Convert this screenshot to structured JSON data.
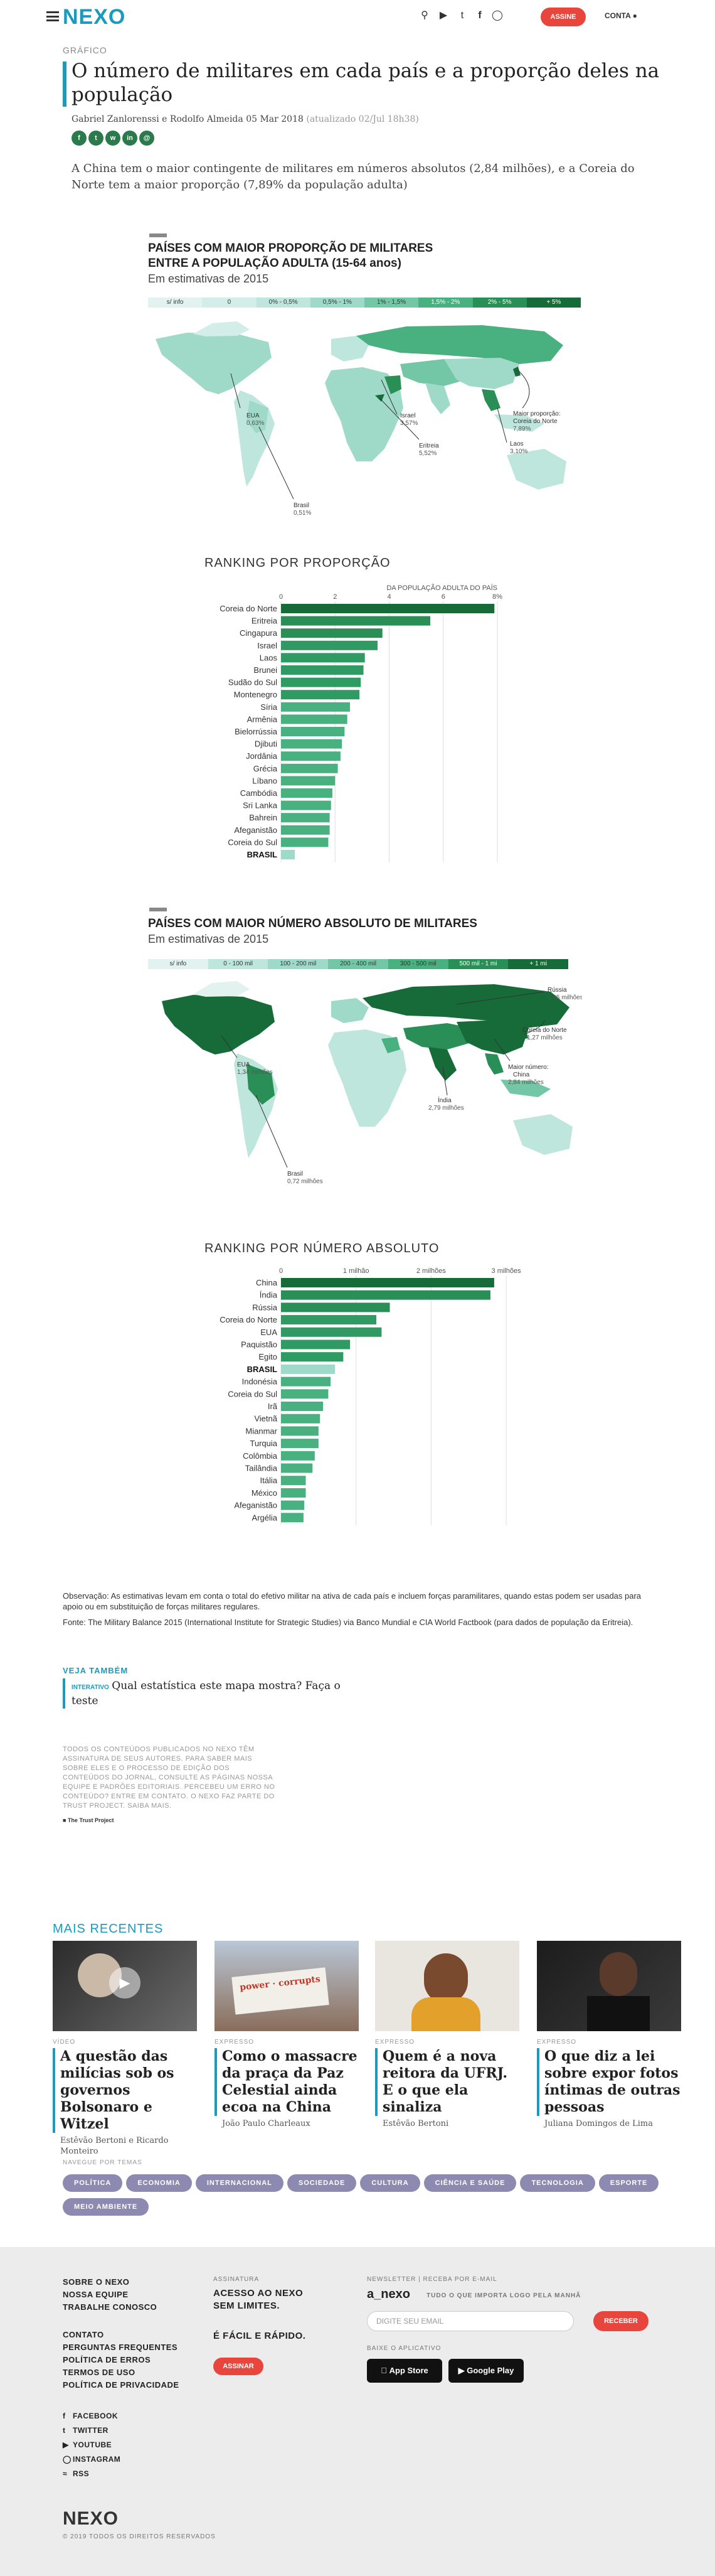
{
  "header": {
    "logo": "NEXO",
    "subscribe": "ASSINE",
    "account": "CONTA",
    "icons": [
      "search-icon",
      "youtube-icon",
      "twitter-icon",
      "facebook-icon",
      "instagram-icon"
    ]
  },
  "article": {
    "kicker": "GRÁFICO",
    "title": "O número de militares em cada país e a proporção deles na população",
    "authors": "Gabriel Zanlorenssi e Rodolfo Almeida",
    "date": "05 Mar 2018",
    "updated": "(atualizado 02/Jul 18h38)",
    "share": [
      "f",
      "t",
      "w",
      "in",
      "@"
    ],
    "lead": "A China tem o maior contingente de militares em números absolutos (2,84 milhões), e a Coreia do Norte tem a maior proporção (7,89% da população adulta)"
  },
  "section1": {
    "title1": "PAÍSES COM MAIOR PROPORÇÃO DE MILITARES",
    "title2": "ENTRE A POPULAÇÃO ADULTA (15-64 anos)",
    "subtitle": "Em estimativas de 2015",
    "legend": [
      "s/ info",
      "0",
      "0% - 0,5%",
      "0,5% - 1%",
      "1% - 1,5%",
      "1,5% - 2%",
      "2% - 5%",
      "+ 5%"
    ],
    "legend_colors": [
      "#e2f2ef",
      "#d3ede8",
      "#bfe6dd",
      "#9fd9c8",
      "#74c7a6",
      "#49b07f",
      "#2a8f57",
      "#166b39"
    ],
    "map_labels": [
      {
        "name": "EUA",
        "value": "0,63%"
      },
      {
        "name": "Israel",
        "value": "3,57%"
      },
      {
        "name": "Eritreia",
        "value": "5,52%"
      },
      {
        "name": "Maior proporção:",
        "value": "Coreia do Norte",
        "extra": "7,89%"
      },
      {
        "name": "Laos",
        "value": "3,10%"
      },
      {
        "name": "Brasil",
        "value": "0,51%"
      }
    ]
  },
  "ranking1": {
    "title": "RANKING POR PROPORÇÃO",
    "axis_note": "DA POPULAÇÃO ADULTA DO PAÍS",
    "ticks": [
      "0",
      "2",
      "4",
      "6",
      "8%"
    ]
  },
  "section2": {
    "title": "PAÍSES COM MAIOR NÚMERO ABSOLUTO DE MILITARES",
    "subtitle": "Em estimativas de 2015",
    "legend": [
      "s/ info",
      "0 - 100 mil",
      "100 - 200 mil",
      "200 - 400 mil",
      "300 - 500 mil",
      "500 mil - 1 mi",
      "+ 1 mi"
    ],
    "legend_colors": [
      "#e2f2ef",
      "#bfe6dd",
      "#9fd9c8",
      "#74c7a6",
      "#49b07f",
      "#2a8f57",
      "#166b39"
    ],
    "map_labels": [
      {
        "name": "Rússia",
        "value": "1,45 milhões"
      },
      {
        "name": "Coreia do Norte",
        "value": "1,27 milhões"
      },
      {
        "name": "EUA",
        "value": "1,34 milhões"
      },
      {
        "name": "Maior número:",
        "value": "China",
        "extra": "2,84 milhões"
      },
      {
        "name": "Índia",
        "value": "2,79 milhões"
      },
      {
        "name": "Brasil",
        "value": "0,72 milhões"
      }
    ]
  },
  "ranking2": {
    "title": "RANKING POR NÚMERO ABSOLUTO",
    "ticks": [
      "0",
      "1 milhão",
      "2 milhões",
      "3 milhões"
    ]
  },
  "chart_data": [
    {
      "type": "bar",
      "title": "RANKING POR PROPORÇÃO",
      "xlabel": "DA POPULAÇÃO ADULTA DO PAÍS",
      "xlim": [
        0,
        8
      ],
      "categories": [
        "Coreia do Norte",
        "Eritreia",
        "Cingapura",
        "Israel",
        "Laos",
        "Brunei",
        "Sudão do Sul",
        "Montenegro",
        "Síria",
        "Armênia",
        "Bielorrússia",
        "Djibuti",
        "Jordânia",
        "Grécia",
        "Líbano",
        "Cambódia",
        "Sri Lanka",
        "Bahrein",
        "Afeganistão",
        "Coreia do Sul",
        "BRASIL"
      ],
      "values": [
        7.89,
        5.52,
        3.75,
        3.57,
        3.1,
        3.05,
        2.95,
        2.9,
        2.55,
        2.45,
        2.35,
        2.25,
        2.2,
        2.1,
        2.0,
        1.9,
        1.85,
        1.8,
        1.8,
        1.75,
        0.51
      ]
    },
    {
      "type": "bar",
      "title": "RANKING POR NÚMERO ABSOLUTO",
      "xlim": [
        0,
        3.2
      ],
      "unit": "milhões",
      "categories": [
        "China",
        "Índia",
        "Rússia",
        "Coreia do Norte",
        "EUA",
        "Paquistão",
        "Egito",
        "BRASIL",
        "Indonésia",
        "Coreia do Sul",
        "Irã",
        "Vietnã",
        "Mianmar",
        "Turquia",
        "Colômbia",
        "Tailândia",
        "Itália",
        "México",
        "Afeganistão",
        "Argélia"
      ],
      "values": [
        2.84,
        2.79,
        1.45,
        1.27,
        1.34,
        0.92,
        0.83,
        0.72,
        0.66,
        0.63,
        0.56,
        0.52,
        0.5,
        0.5,
        0.45,
        0.42,
        0.33,
        0.33,
        0.31,
        0.3
      ]
    }
  ],
  "notes": {
    "observacao": "Observação: As estimativas levam em conta o total do efetivo militar na ativa de cada país e incluem forças paramilitares, quando estas podem ser usadas para apoio ou em substituição de forças militares regulares.",
    "fonte": "Fonte: The Military Balance 2015 (International Institute for Strategic Studies) via Banco Mundial e CIA World Factbook (para dados de população da Eritreia)."
  },
  "see_also": {
    "label": "VEJA TAMBÉM",
    "tag": "INTERATIVO",
    "text": "Qual estatística este mapa mostra? Faça o teste"
  },
  "trust": {
    "text": "TODOS OS CONTEÚDOS PUBLICADOS NO NEXO TÊM ASSINATURA DE SEUS AUTORES. PARA SABER MAIS SOBRE ELES E O PROCESSO DE EDIÇÃO DOS CONTEÚDOS DO JORNAL, CONSULTE AS PÁGINAS NOSSA EQUIPE E PADRÕES EDITORIAIS. PERCEBEU UM ERRO NO CONTEÚDO? ENTRE EM CONTATO. O NEXO FAZ PARTE DO TRUST PROJECT. SAIBA MAIS.",
    "logo": "The Trust Project"
  },
  "recent": {
    "label": "MAIS RECENTES",
    "cards": [
      {
        "cat": "VÍDEO",
        "title": "A questão das milícias sob os governos Bolsonaro e Witzel",
        "author": "Estêvão Bertoni e Ricardo Monteiro"
      },
      {
        "cat": "EXPRESSO",
        "title": "Como o massacre da praça da Paz Celestial ainda ecoa na China",
        "author": "João Paulo Charleaux"
      },
      {
        "cat": "EXPRESSO",
        "title": "Quem é a nova reitora da UFRJ. E o que ela sinaliza",
        "author": "Estêvão Bertoni"
      },
      {
        "cat": "EXPRESSO",
        "title": "O que diz a lei sobre expor fotos íntimas de outras pessoas",
        "author": "Juliana Domingos de Lima"
      }
    ]
  },
  "themes": {
    "label": "NAVEGUE POR TEMAS",
    "items": [
      "POLÍTICA",
      "ECONOMIA",
      "INTERNACIONAL",
      "SOCIEDADE",
      "CULTURA",
      "CIÊNCIA E SAÚDE",
      "TECNOLOGIA",
      "ESPORTE",
      "MEIO AMBIENTE"
    ]
  },
  "footer": {
    "col1a": [
      "SOBRE O NEXO",
      "NOSSA EQUIPE",
      "TRABALHE CONOSCO"
    ],
    "col1b": [
      "CONTATO",
      "PERGUNTAS FREQUENTES",
      "POLÍTICA DE ERROS",
      "TERMOS DE USO",
      "POLÍTICA DE PRIVACIDADE"
    ],
    "social": [
      "FACEBOOK",
      "TWITTER",
      "YOUTUBE",
      "INSTAGRAM",
      "RSS"
    ],
    "sub_label": "ASSINATURA",
    "sub_line1": "ACESSO AO NEXO SEM LIMITES.",
    "sub_line2": "É FÁCIL E RÁPIDO.",
    "sub_btn": "ASSINAR",
    "nl_label": "NEWSLETTER | RECEBA POR E-MAIL",
    "nl_brand": "a_nexo",
    "nl_tagline": "TUDO O QUE IMPORTA LOGO PELA MANHÃ",
    "nl_placeholder": "DIGITE SEU EMAIL",
    "nl_btn": "RECEBER",
    "app_label": "BAIXE O APLICATIVO",
    "appstore": "App Store",
    "googleplay": "Google Play",
    "logo": "NEXO",
    "copyright": "© 2019 TODOS OS DIREITOS RESERVADOS"
  }
}
